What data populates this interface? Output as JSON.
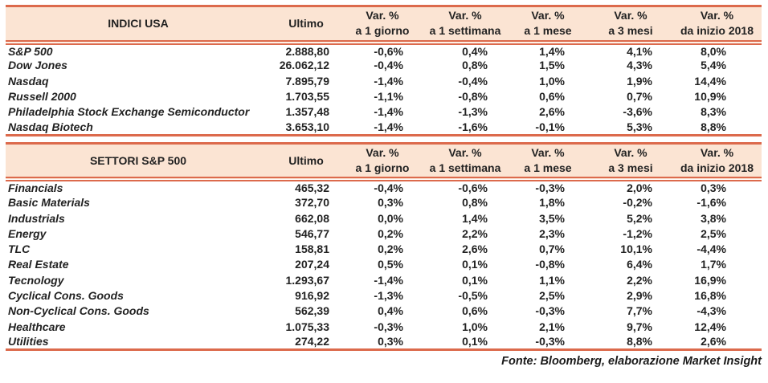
{
  "colors": {
    "accent_border": "#DC6A4C",
    "header_bg": "#FBE4D3",
    "text": "#222222",
    "page_bg": "#FFFFFF"
  },
  "columns": {
    "ultimo": "Ultimo",
    "var_label": "Var. %",
    "periods": [
      "a 1 giorno",
      "a 1 settimana",
      "a 1 mese",
      "a 3 mesi",
      "da inizio 2018"
    ]
  },
  "tables": [
    {
      "title": "INDICI USA",
      "rows": [
        {
          "name": "S&P 500",
          "values": [
            "2.888,80",
            "-0,6%",
            "0,4%",
            "1,4%",
            "4,1%",
            "8,0%"
          ]
        },
        {
          "name": "Dow Jones",
          "values": [
            "26.062,12",
            "-0,4%",
            "0,8%",
            "1,5%",
            "4,3%",
            "5,4%"
          ]
        },
        {
          "name": "Nasdaq",
          "values": [
            "7.895,79",
            "-1,4%",
            "-0,4%",
            "1,0%",
            "1,9%",
            "14,4%"
          ]
        },
        {
          "name": "Russell 2000",
          "values": [
            "1.703,55",
            "-1,1%",
            "-0,8%",
            "0,6%",
            "0,7%",
            "10,9%"
          ]
        },
        {
          "name": "Philadelphia Stock Exchange Semiconductor",
          "values": [
            "1.357,48",
            "-1,4%",
            "-1,3%",
            "2,6%",
            "-3,6%",
            "8,3%"
          ]
        },
        {
          "name": "Nasdaq Biotech",
          "values": [
            "3.653,10",
            "-1,4%",
            "-1,6%",
            "-0,1%",
            "5,3%",
            "8,8%"
          ]
        }
      ]
    },
    {
      "title": "SETTORI S&P 500",
      "rows": [
        {
          "name": "Financials",
          "values": [
            "465,32",
            "-0,4%",
            "-0,6%",
            "-0,3%",
            "2,0%",
            "0,3%"
          ]
        },
        {
          "name": "Basic Materials",
          "values": [
            "372,70",
            "0,3%",
            "0,8%",
            "1,8%",
            "-0,2%",
            "-1,6%"
          ]
        },
        {
          "name": "Industrials",
          "values": [
            "662,08",
            "0,0%",
            "1,4%",
            "3,5%",
            "5,2%",
            "3,8%"
          ]
        },
        {
          "name": "Energy",
          "values": [
            "546,77",
            "0,2%",
            "2,2%",
            "2,3%",
            "-1,2%",
            "2,5%"
          ]
        },
        {
          "name": "TLC",
          "values": [
            "158,81",
            "0,2%",
            "2,6%",
            "0,7%",
            "10,1%",
            "-4,4%"
          ]
        },
        {
          "name": "Real Estate",
          "values": [
            "207,24",
            "0,5%",
            "0,1%",
            "-0,8%",
            "6,4%",
            "1,7%"
          ]
        },
        {
          "name": "Tecnology",
          "values": [
            "1.293,67",
            "-1,4%",
            "0,1%",
            "1,1%",
            "2,2%",
            "16,9%"
          ]
        },
        {
          "name": "Cyclical Cons. Goods",
          "values": [
            "916,92",
            "-1,3%",
            "-0,5%",
            "2,5%",
            "2,9%",
            "16,8%"
          ]
        },
        {
          "name": "Non-Cyclical Cons. Goods",
          "values": [
            "562,39",
            "0,4%",
            "0,6%",
            "-0,3%",
            "7,7%",
            "-4,3%"
          ]
        },
        {
          "name": "Healthcare",
          "values": [
            "1.075,33",
            "-0,3%",
            "1,0%",
            "2,1%",
            "9,7%",
            "12,4%"
          ]
        },
        {
          "name": "Utilities",
          "values": [
            "274,22",
            "0,3%",
            "0,1%",
            "-0,3%",
            "8,8%",
            "2,6%"
          ]
        }
      ]
    }
  ],
  "footer": {
    "text": "Fonte: Bloomberg, elaborazione Market Insight"
  }
}
